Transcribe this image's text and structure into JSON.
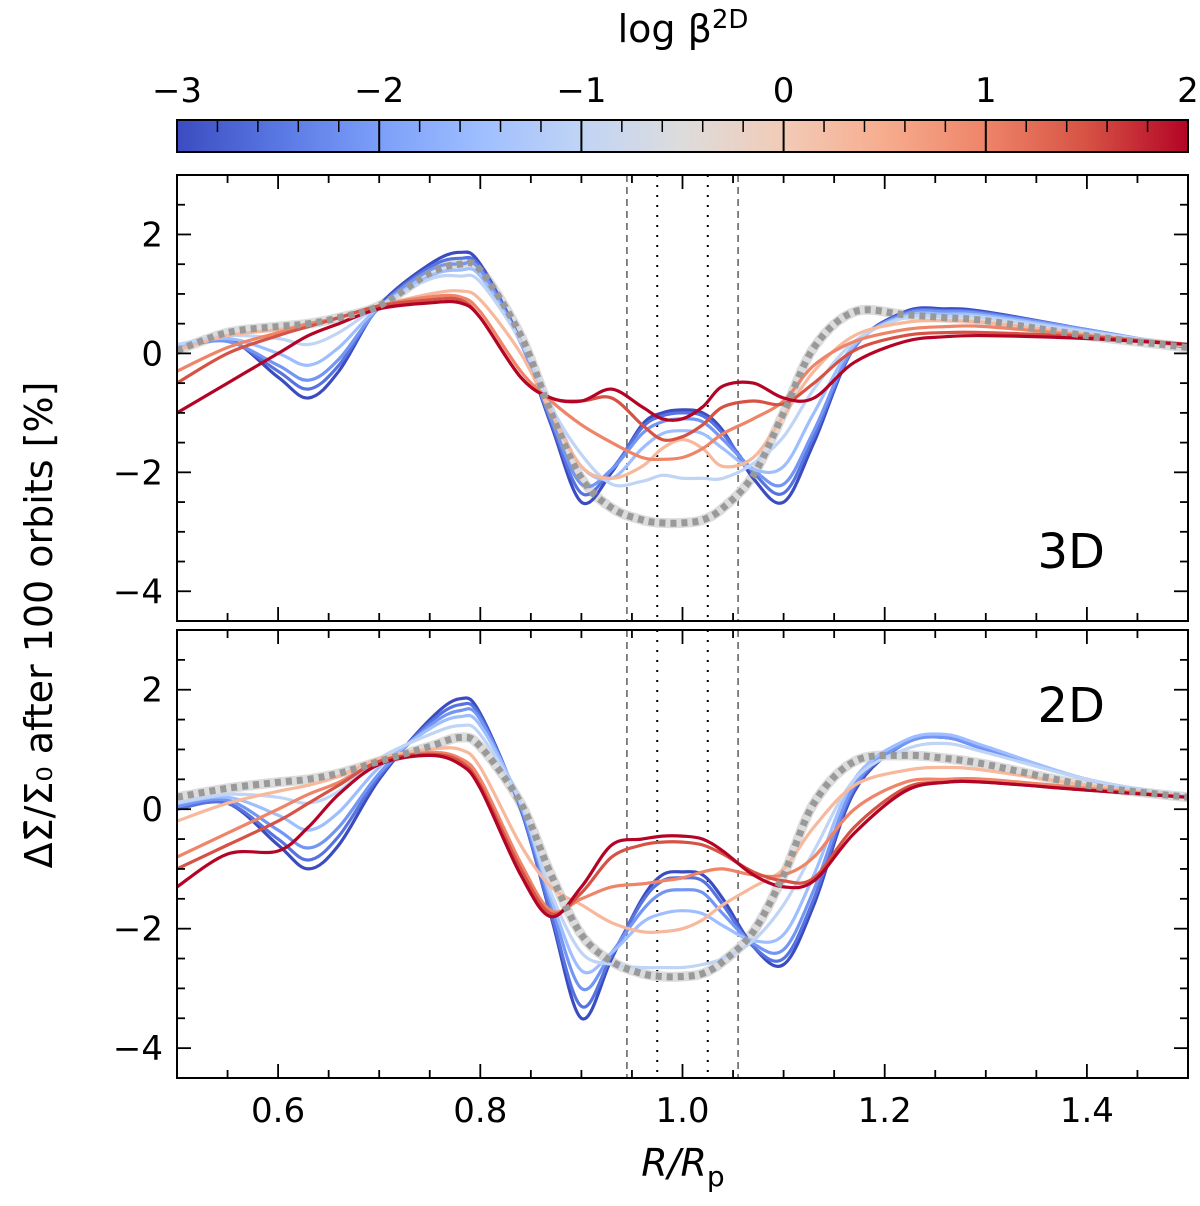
{
  "chart_data": [
    {
      "type": "line",
      "panel": "3D",
      "panel_label": "3D",
      "xlabel": "R/R_p",
      "ylabel": "ΔΣ̄/Σ₀ after 100 orbits [%]",
      "xlim": [
        0.5,
        1.5
      ],
      "ylim": [
        -4.5,
        3.0
      ],
      "xticks": [
        0.6,
        0.8,
        1.0,
        1.2,
        1.4
      ],
      "yticks": [
        -4,
        -2,
        0,
        2
      ],
      "vlines_dashed": [
        0.945,
        1.055
      ],
      "vlines_dotted": [
        0.975,
        1.025
      ],
      "x": [
        0.5,
        0.55,
        0.6,
        0.63,
        0.66,
        0.7,
        0.75,
        0.78,
        0.8,
        0.84,
        0.87,
        0.9,
        0.93,
        0.96,
        0.98,
        1.0,
        1.02,
        1.04,
        1.07,
        1.1,
        1.13,
        1.17,
        1.22,
        1.26,
        1.3,
        1.4,
        1.5
      ],
      "series": [
        {
          "name": "log β = -3",
          "color": "#3b4cc0",
          "values": [
            0.1,
            0.25,
            -0.4,
            -0.75,
            -0.3,
            0.8,
            1.5,
            1.7,
            1.5,
            0.2,
            -1.2,
            -2.5,
            -2.0,
            -1.2,
            -1.0,
            -0.95,
            -1.0,
            -1.3,
            -2.1,
            -2.5,
            -1.5,
            0.1,
            0.7,
            0.75,
            0.7,
            0.4,
            0.1
          ]
        },
        {
          "name": "log β = -2.5",
          "color": "#5673e0",
          "values": [
            0.1,
            0.22,
            -0.3,
            -0.6,
            -0.2,
            0.78,
            1.45,
            1.6,
            1.45,
            0.2,
            -1.15,
            -2.35,
            -1.95,
            -1.25,
            -1.05,
            -1.0,
            -1.05,
            -1.35,
            -2.0,
            -2.35,
            -1.4,
            0.1,
            0.68,
            0.72,
            0.68,
            0.4,
            0.1
          ]
        },
        {
          "name": "log β = -2",
          "color": "#7396f5",
          "values": [
            0.1,
            0.2,
            -0.2,
            -0.45,
            -0.1,
            0.77,
            1.4,
            1.5,
            1.4,
            0.18,
            -1.1,
            -2.2,
            -1.95,
            -1.35,
            -1.15,
            -1.1,
            -1.15,
            -1.45,
            -1.95,
            -2.2,
            -1.3,
            0.12,
            0.66,
            0.7,
            0.66,
            0.4,
            0.1
          ]
        },
        {
          "name": "log β = -1.5",
          "color": "#9ebeff",
          "values": [
            0.12,
            0.25,
            0.0,
            -0.2,
            0.1,
            0.78,
            1.3,
            1.4,
            1.3,
            0.2,
            -0.95,
            -1.9,
            -2.1,
            -1.6,
            -1.35,
            -1.3,
            -1.35,
            -1.6,
            -1.95,
            -1.9,
            -1.0,
            0.15,
            0.63,
            0.66,
            0.63,
            0.38,
            0.12
          ]
        },
        {
          "name": "log β = -0.5",
          "color": "#c0d4f5",
          "values": [
            0.15,
            0.3,
            0.25,
            0.15,
            0.35,
            0.8,
            1.25,
            1.3,
            1.2,
            0.2,
            -0.9,
            -1.7,
            -2.2,
            -2.15,
            -2.05,
            -2.1,
            -2.1,
            -2.1,
            -1.85,
            -1.4,
            -0.6,
            0.2,
            0.6,
            0.62,
            0.6,
            0.36,
            0.14
          ]
        },
        {
          "name": "log β = 0.3",
          "color": "#f7b89c",
          "values": [
            0.05,
            0.3,
            0.4,
            0.5,
            0.6,
            0.8,
            1.0,
            1.05,
            0.9,
            0.0,
            -1.0,
            -1.9,
            -2.1,
            -1.9,
            -1.6,
            -1.45,
            -1.6,
            -1.9,
            -1.75,
            -1.05,
            -0.3,
            0.3,
            0.52,
            0.55,
            0.52,
            0.32,
            0.12
          ]
        },
        {
          "name": "log β = 0.8",
          "color": "#ee8468",
          "values": [
            -0.3,
            0.1,
            0.35,
            0.5,
            0.6,
            0.8,
            0.95,
            0.95,
            0.7,
            -0.3,
            -0.8,
            -1.2,
            -1.5,
            -1.75,
            -1.78,
            -1.75,
            -1.6,
            -1.35,
            -1.1,
            -0.8,
            -0.2,
            0.2,
            0.4,
            0.45,
            0.45,
            0.3,
            0.15
          ]
        },
        {
          "name": "log β = 1.3",
          "color": "#d65244",
          "values": [
            -0.5,
            0.0,
            0.3,
            0.45,
            0.6,
            0.8,
            0.9,
            0.9,
            0.6,
            -0.4,
            -0.75,
            -0.8,
            -0.75,
            -1.2,
            -1.45,
            -1.4,
            -1.2,
            -0.9,
            -0.8,
            -0.85,
            -0.5,
            0.05,
            0.3,
            0.35,
            0.35,
            0.28,
            0.15
          ]
        },
        {
          "name": "log β = 2",
          "color": "#b40426",
          "values": [
            -1.0,
            -0.5,
            0.0,
            0.3,
            0.5,
            0.75,
            0.85,
            0.85,
            0.6,
            -0.4,
            -0.75,
            -0.8,
            -0.6,
            -0.9,
            -1.1,
            -1.1,
            -0.9,
            -0.55,
            -0.5,
            -0.75,
            -0.75,
            -0.15,
            0.2,
            0.28,
            0.3,
            0.25,
            0.15
          ]
        }
      ],
      "reference": {
        "name": "reference",
        "color": "#999999",
        "values": [
          0.05,
          0.35,
          0.45,
          0.5,
          0.6,
          0.8,
          1.35,
          1.5,
          1.4,
          0.3,
          -1.0,
          -2.1,
          -2.6,
          -2.8,
          -2.85,
          -2.85,
          -2.8,
          -2.6,
          -2.05,
          -1.0,
          0.1,
          0.7,
          0.65,
          0.6,
          0.55,
          0.3,
          0.1
        ]
      }
    },
    {
      "type": "line",
      "panel": "2D",
      "panel_label": "2D",
      "xlabel": "R/R_p",
      "ylabel": "ΔΣ̄/Σ₀ after 100 orbits [%]",
      "xlim": [
        0.5,
        1.5
      ],
      "ylim": [
        -4.5,
        3.0
      ],
      "xticks": [
        0.6,
        0.8,
        1.0,
        1.2,
        1.4
      ],
      "yticks": [
        -4,
        -2,
        0,
        2
      ],
      "vlines_dashed": [
        0.945,
        1.055
      ],
      "vlines_dotted": [
        0.975,
        1.025
      ],
      "x": [
        0.5,
        0.55,
        0.6,
        0.63,
        0.66,
        0.7,
        0.75,
        0.78,
        0.8,
        0.84,
        0.87,
        0.9,
        0.93,
        0.96,
        0.98,
        1.0,
        1.02,
        1.04,
        1.07,
        1.1,
        1.13,
        1.17,
        1.22,
        1.26,
        1.3,
        1.4,
        1.5
      ],
      "series": [
        {
          "name": "log β = -3",
          "color": "#3b4cc0",
          "values": [
            0.0,
            0.1,
            -0.6,
            -1.0,
            -0.6,
            0.5,
            1.5,
            1.85,
            1.6,
            0.0,
            -1.8,
            -3.5,
            -2.5,
            -1.5,
            -1.1,
            -1.05,
            -1.1,
            -1.5,
            -2.3,
            -2.6,
            -1.6,
            0.3,
            1.1,
            1.2,
            1.0,
            0.5,
            0.2
          ]
        },
        {
          "name": "log β = -2.5",
          "color": "#5673e0",
          "values": [
            0.0,
            0.1,
            -0.5,
            -0.85,
            -0.45,
            0.55,
            1.45,
            1.75,
            1.55,
            0.0,
            -1.75,
            -3.3,
            -2.45,
            -1.55,
            -1.2,
            -1.15,
            -1.2,
            -1.6,
            -2.3,
            -2.5,
            -1.5,
            0.35,
            1.1,
            1.2,
            1.0,
            0.5,
            0.2
          ]
        },
        {
          "name": "log β = -2",
          "color": "#7396f5",
          "values": [
            0.05,
            0.15,
            -0.35,
            -0.65,
            -0.3,
            0.6,
            1.4,
            1.65,
            1.5,
            0.05,
            -1.6,
            -3.0,
            -2.4,
            -1.7,
            -1.4,
            -1.35,
            -1.4,
            -1.75,
            -2.25,
            -2.35,
            -1.35,
            0.4,
            1.1,
            1.2,
            1.0,
            0.5,
            0.2
          ]
        },
        {
          "name": "log β = -1.5",
          "color": "#9ebeff",
          "values": [
            0.1,
            0.2,
            -0.1,
            -0.35,
            -0.05,
            0.7,
            1.35,
            1.55,
            1.4,
            0.1,
            -1.5,
            -2.7,
            -2.4,
            -1.9,
            -1.75,
            -1.7,
            -1.75,
            -1.95,
            -2.2,
            -2.1,
            -1.1,
            0.5,
            1.15,
            1.25,
            1.05,
            0.5,
            0.2
          ]
        },
        {
          "name": "log β = -0.5",
          "color": "#c0d4f5",
          "values": [
            0.1,
            0.25,
            0.2,
            0.1,
            0.3,
            0.85,
            1.25,
            1.4,
            1.25,
            0.1,
            -1.4,
            -2.4,
            -2.6,
            -2.65,
            -2.65,
            -2.65,
            -2.6,
            -2.5,
            -2.2,
            -1.6,
            -0.7,
            0.5,
            1.0,
            1.1,
            0.95,
            0.5,
            0.2
          ]
        },
        {
          "name": "log β = 0.3",
          "color": "#f7b89c",
          "values": [
            -0.2,
            0.1,
            0.3,
            0.4,
            0.55,
            0.85,
            1.0,
            1.0,
            0.7,
            -0.6,
            -1.3,
            -1.6,
            -1.9,
            -2.05,
            -2.05,
            -2.0,
            -1.85,
            -1.6,
            -1.3,
            -1.0,
            -0.3,
            0.4,
            0.65,
            0.7,
            0.65,
            0.4,
            0.2
          ]
        },
        {
          "name": "log β = 0.8",
          "color": "#ee8468",
          "values": [
            -0.8,
            -0.4,
            0.0,
            0.25,
            0.45,
            0.8,
            0.95,
            0.85,
            0.5,
            -0.9,
            -1.7,
            -1.5,
            -1.3,
            -1.25,
            -1.2,
            -1.15,
            -1.05,
            -1.0,
            -1.1,
            -1.1,
            -0.8,
            0.0,
            0.45,
            0.5,
            0.5,
            0.35,
            0.2
          ]
        },
        {
          "name": "log β = 1.3",
          "color": "#d65244",
          "values": [
            -1.0,
            -0.6,
            -0.2,
            0.1,
            0.4,
            0.8,
            0.92,
            0.8,
            0.4,
            -1.0,
            -1.75,
            -1.4,
            -0.8,
            -0.6,
            -0.55,
            -0.55,
            -0.6,
            -0.75,
            -1.05,
            -1.2,
            -1.15,
            -0.3,
            0.35,
            0.45,
            0.45,
            0.32,
            0.2
          ]
        },
        {
          "name": "log β = 2",
          "color": "#b40426",
          "values": [
            -1.3,
            -0.75,
            -0.7,
            -0.3,
            0.25,
            0.75,
            0.9,
            0.75,
            0.35,
            -1.1,
            -1.8,
            -1.3,
            -0.6,
            -0.5,
            -0.45,
            -0.45,
            -0.5,
            -0.7,
            -1.1,
            -1.3,
            -1.2,
            -0.4,
            0.3,
            0.45,
            0.45,
            0.32,
            0.2
          ]
        }
      ],
      "reference": {
        "name": "reference",
        "color": "#999999",
        "values": [
          0.2,
          0.35,
          0.45,
          0.5,
          0.6,
          0.8,
          1.05,
          1.2,
          1.05,
          0.1,
          -1.1,
          -2.1,
          -2.55,
          -2.75,
          -2.8,
          -2.8,
          -2.75,
          -2.55,
          -2.05,
          -1.1,
          0.1,
          0.8,
          0.9,
          0.85,
          0.75,
          0.4,
          0.2
        ]
      }
    }
  ],
  "colorbar": {
    "label": "log β^2D",
    "range": [
      -3,
      2
    ],
    "ticks": [
      "−3",
      "−2",
      "−1",
      "0",
      "1",
      "2"
    ],
    "tick_values": [
      -3,
      -2,
      -1,
      0,
      1,
      2
    ],
    "colors": [
      "#3b4cc0",
      "#5977e3",
      "#7b9ff9",
      "#9ebeff",
      "#c0d4f5",
      "#dddcdc",
      "#f2cbb7",
      "#f7ac8e",
      "#ee8468",
      "#d65244",
      "#b40426"
    ]
  },
  "labels": {
    "ylabel": "ΔΣ̄/Σ₀ after 100 orbits [%]",
    "xlabel_main": "R/R",
    "xlabel_sub": "p",
    "colorbar_label": "log β",
    "colorbar_sup": "2D",
    "panel_top": "3D",
    "panel_bottom": "2D"
  }
}
